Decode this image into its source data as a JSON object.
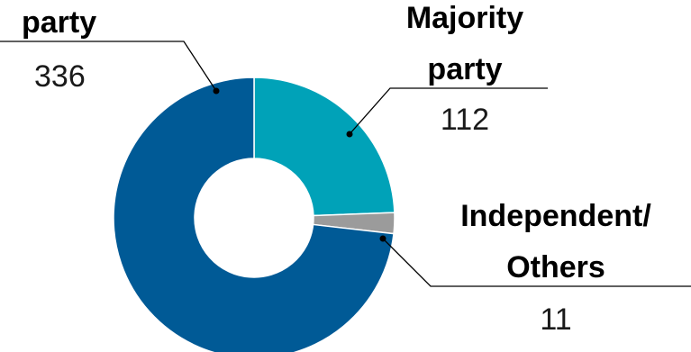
{
  "chart_data": {
    "type": "pie",
    "style": "donut",
    "categories": [
      "party",
      "Majority party",
      "Independent/ Others"
    ],
    "values": [
      336,
      112,
      11
    ],
    "colors": [
      "#005a96",
      "#00a2b8",
      "#9b9b9b"
    ],
    "labels": [
      {
        "name_lines": [
          "party"
        ],
        "value": "336"
      },
      {
        "name_lines": [
          "Majority",
          "party"
        ],
        "value": "112"
      },
      {
        "name_lines": [
          "Independent/",
          "Others"
        ],
        "value": "11"
      }
    ]
  }
}
